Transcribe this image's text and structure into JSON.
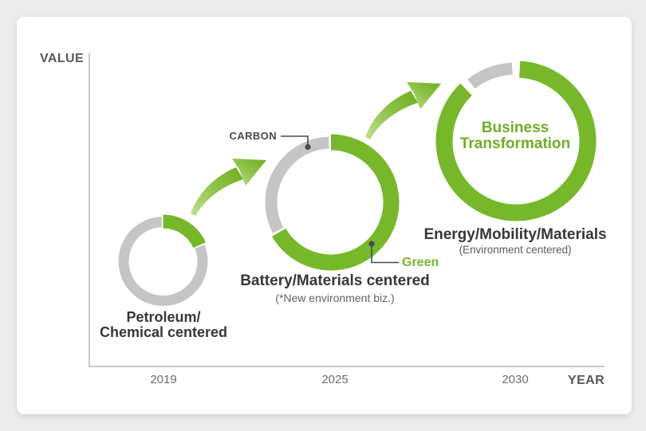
{
  "axes": {
    "y_label": "VALUE",
    "x_label": "YEAR"
  },
  "annotations": {
    "carbon_label": "CARBON",
    "green_label": "Green"
  },
  "milestones": [
    {
      "year": "2019",
      "label_line1": "Petroleum/",
      "label_line2": "Chemical centered",
      "arc": {
        "green_start": 0,
        "green_end": 66,
        "gray_start": 66,
        "gray_end": 360
      }
    },
    {
      "year": "2025",
      "label": "Battery/Materials centered",
      "sublabel": "(*New environment biz.)",
      "arc": {
        "green_start": 0,
        "green_end": 240,
        "gray_start": 240,
        "gray_end": 360
      }
    },
    {
      "year": "2030",
      "label": "Energy/Mobility/Materials",
      "sublabel": "(Environment centered)",
      "center_line1": "Business",
      "center_line2": "Transformation",
      "arc": {
        "green_start": 3,
        "green_end": 316,
        "gray_start": 322,
        "gray_end": 357
      }
    }
  ],
  "colors": {
    "green": "#76b82a",
    "green_dark": "#6cae20",
    "green_mid": "#8cc144",
    "green_light": "#c3e093",
    "gray_ring": "#c5c5c5",
    "axis": "#c9c9c9",
    "connector": "#4a4a4a",
    "text_dark": "#373737",
    "text_muted": "#646464"
  },
  "chart_data": {
    "type": "diagram",
    "xlabel": "YEAR",
    "ylabel": "VALUE",
    "x": [
      "2019",
      "2025",
      "2030"
    ],
    "series": [
      {
        "name": "Petroleum/Chemical centered",
        "year": "2019",
        "green_ring_pct": 18,
        "gray_ring_pct": 82,
        "ring_size": "small"
      },
      {
        "name": "Battery/Materials centered (*New environment biz.)",
        "year": "2025",
        "green_ring_pct": 67,
        "gray_ring_pct": 33,
        "ring_size": "medium"
      },
      {
        "name": "Energy/Mobility/Materials (Environment centered)",
        "year": "2030",
        "green_ring_pct": 87,
        "gray_ring_pct": 13,
        "ring_size": "large"
      }
    ],
    "annotations": [
      "CARBON",
      "Green",
      "Business Transformation"
    ],
    "legend_position": "none",
    "grid": false
  }
}
